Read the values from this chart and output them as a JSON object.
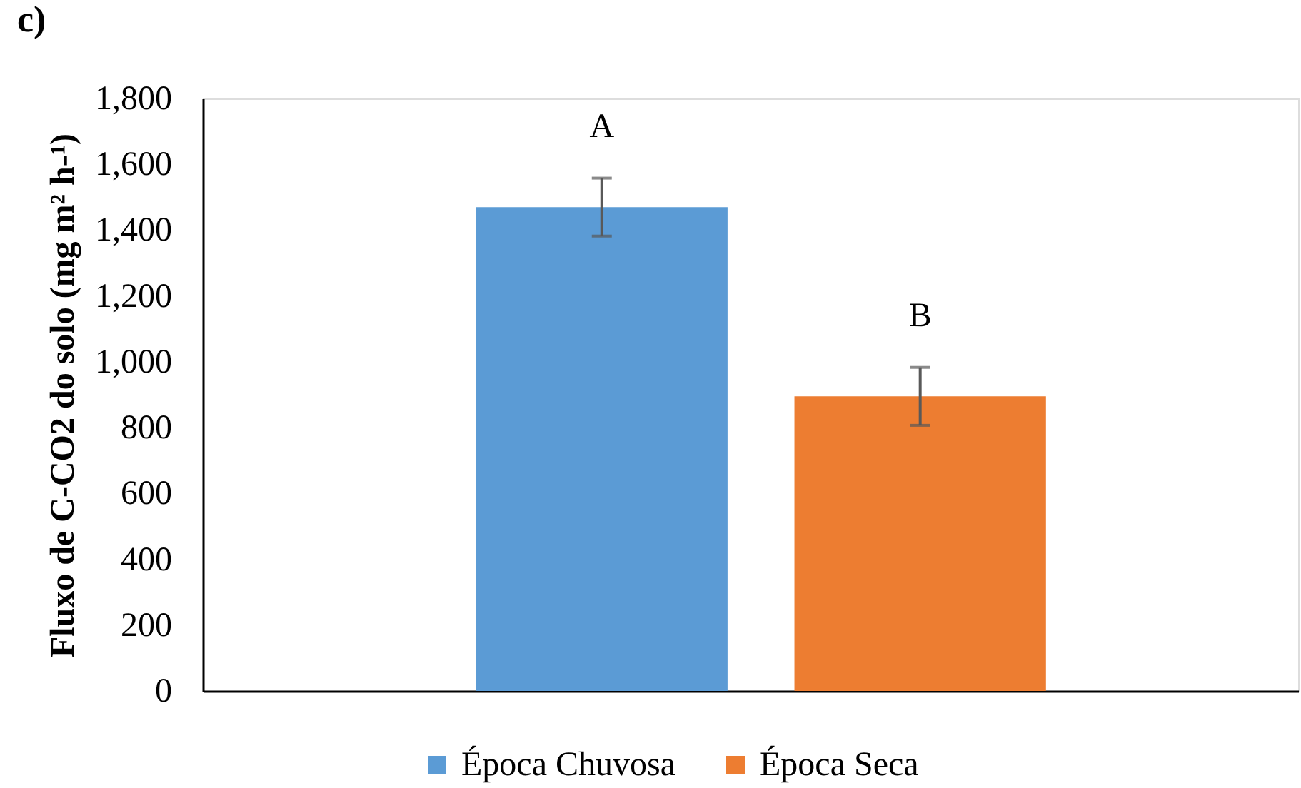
{
  "chart_data": {
    "type": "bar",
    "title": "c)",
    "ylabel": "Fluxo de C-CO2 do solo (mg m² h-¹)",
    "categories": [
      null
    ],
    "series": [
      {
        "name": "Época Chuvosa",
        "color": "#5b9bd5",
        "values": [
          1470
        ],
        "errors": [
          88
        ],
        "value_labels": [
          "A"
        ]
      },
      {
        "name": "Época Seca",
        "color": "#ed7d31",
        "values": [
          895
        ],
        "errors": [
          88
        ],
        "value_labels": [
          "B"
        ]
      }
    ],
    "ylim": [
      0,
      1800
    ],
    "yticks": [
      0,
      200,
      400,
      600,
      800,
      {
        "value": 1000,
        "label": "1,000"
      },
      {
        "value": 1200,
        "label": "1,200"
      },
      {
        "value": 1400,
        "label": "1,400"
      },
      {
        "value": 1600,
        "label": "1,600"
      },
      {
        "value": 1800,
        "label": "1,800"
      }
    ],
    "tick_labels": "y",
    "legend": "bottom"
  }
}
